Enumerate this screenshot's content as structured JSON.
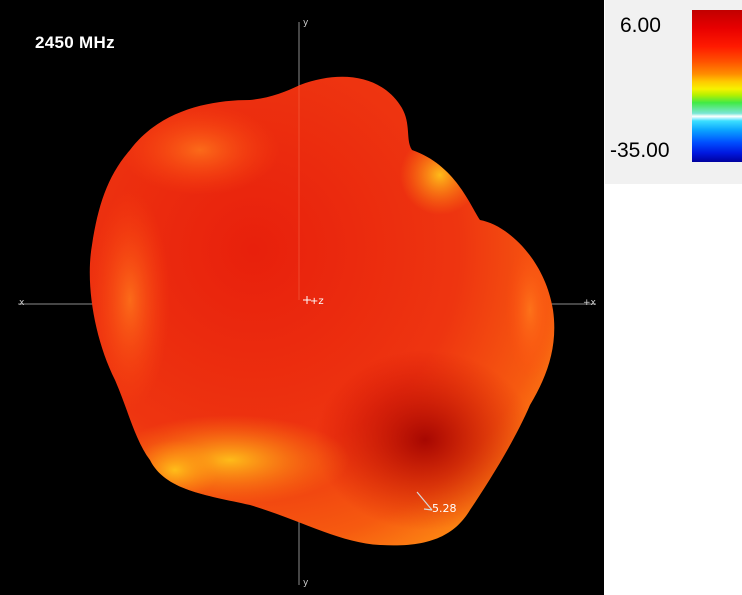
{
  "frequency_label": "2450 MHz",
  "axes": {
    "top": "y",
    "bottom": "y",
    "left": "x",
    "right": "+x",
    "center": "+z"
  },
  "peak_marker": {
    "value": "5.28"
  },
  "legend": {
    "max_label": "6.00",
    "min_label": "-35.00",
    "colormap": [
      "#00009e",
      "#0050ff",
      "#3bdfff",
      "#ffffff",
      "#41ea45",
      "#f6f200",
      "#ff8c00",
      "#ff1a00",
      "#c10000"
    ]
  },
  "colors": {
    "background": "#000000",
    "pattern_main": "#e81e0c",
    "pattern_edge": "#ff8a10"
  }
}
